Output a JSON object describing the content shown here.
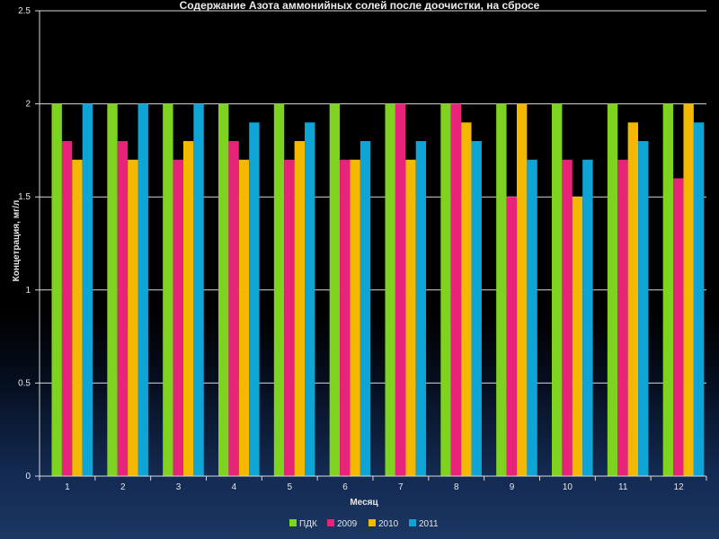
{
  "chart_data": {
    "type": "bar",
    "title": "Содержание Азота аммонийных солей после доочистки, на сбросе",
    "xlabel": "Месяц",
    "ylabel": "Концетрация, мг/л",
    "categories": [
      "1",
      "2",
      "3",
      "4",
      "5",
      "6",
      "7",
      "8",
      "9",
      "10",
      "11",
      "12"
    ],
    "ylim": [
      0,
      2.5
    ],
    "yticks": [
      0,
      0.5,
      1,
      1.5,
      2,
      2.5
    ],
    "ytick_labels": [
      "0",
      "0.5",
      "1",
      "1.5",
      "2",
      "2.5"
    ],
    "grid": true,
    "legend_position": "bottom",
    "series": [
      {
        "name": "ПДК",
        "color": "#7ed321",
        "values": [
          2,
          2,
          2,
          2,
          2,
          2,
          2,
          2,
          2,
          2,
          2,
          2
        ]
      },
      {
        "name": "2009",
        "color": "#e8237a",
        "values": [
          1.8,
          1.8,
          1.7,
          1.8,
          1.7,
          1.7,
          2.0,
          2.0,
          1.5,
          1.7,
          1.7,
          1.6
        ]
      },
      {
        "name": "2010",
        "color": "#f5b800",
        "values": [
          1.7,
          1.7,
          1.8,
          1.7,
          1.8,
          1.7,
          1.7,
          1.9,
          2.0,
          1.5,
          1.9,
          2.0
        ]
      },
      {
        "name": "2011",
        "color": "#0ea5d6",
        "values": [
          2.0,
          2.0,
          2.0,
          1.9,
          1.9,
          1.8,
          1.8,
          1.8,
          1.7,
          1.7,
          1.8,
          1.9
        ]
      }
    ]
  }
}
